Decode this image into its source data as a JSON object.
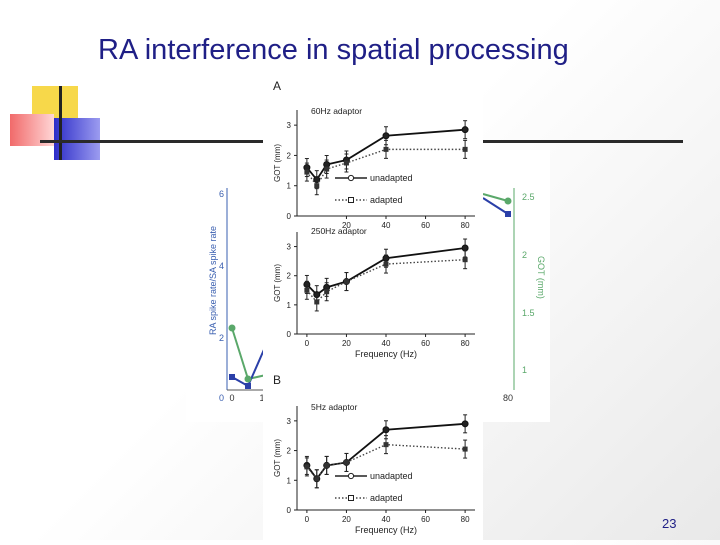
{
  "slide": {
    "title": "RA interference in spatial processing",
    "page_number": "23",
    "colors": {
      "title": "#1f1f86",
      "deco_yellow": "#f7d84a",
      "deco_red": "#f16a6a",
      "deco_blue": "#2d2dc8"
    }
  },
  "back_figure": {
    "left_axis_label": "RA spike rate/SA spike rate",
    "right_axis_label": "GOT (mm)",
    "left_ticks": [
      "6",
      "4",
      "2",
      "0"
    ],
    "right_ticks": [
      "2.5",
      "2",
      "1.5",
      "1"
    ],
    "x_ticks": [
      "0",
      "1",
      "80"
    ],
    "colors": {
      "green": "#5aa86a",
      "blue": "#2a3fa8"
    }
  },
  "chart_data": [
    {
      "type": "line",
      "panel_label": "A",
      "annotation": "60Hz adaptor",
      "xlabel": "",
      "ylabel": "GOT (mm)",
      "x_ticks": [
        "20",
        "40",
        "60",
        "80"
      ],
      "y_ticks": [
        "0",
        "1",
        "2",
        "3"
      ],
      "ylim": [
        0,
        3.5
      ],
      "xlim": [
        -5,
        85
      ],
      "x": [
        0,
        5,
        10,
        20,
        40,
        80
      ],
      "series": [
        {
          "name": "unadapted",
          "style": "solid",
          "values": [
            1.6,
            1.2,
            1.7,
            1.85,
            2.65,
            2.85
          ]
        },
        {
          "name": "adapted",
          "style": "dotted",
          "values": [
            1.45,
            1.0,
            1.55,
            1.75,
            2.2,
            2.2
          ]
        }
      ]
    },
    {
      "type": "line",
      "panel_label": "",
      "annotation": "250Hz adaptor",
      "xlabel": "Frequency (Hz)",
      "ylabel": "GOT (mm)",
      "x_ticks": [
        "0",
        "20",
        "40",
        "60",
        "80"
      ],
      "y_ticks": [
        "0",
        "1",
        "2",
        "3"
      ],
      "ylim": [
        0,
        3.5
      ],
      "xlim": [
        -5,
        85
      ],
      "x": [
        0,
        5,
        10,
        20,
        40,
        80
      ],
      "series": [
        {
          "name": "",
          "style": "solid",
          "values": [
            1.7,
            1.35,
            1.6,
            1.8,
            2.6,
            2.95
          ]
        },
        {
          "name": "",
          "style": "dotted",
          "values": [
            1.5,
            1.1,
            1.45,
            1.8,
            2.4,
            2.55
          ]
        }
      ]
    },
    {
      "type": "line",
      "panel_label": "B",
      "annotation": "5Hz adaptor",
      "xlabel": "Frequency (Hz)",
      "ylabel": "GOT (mm)",
      "x_ticks": [
        "0",
        "20",
        "40",
        "60",
        "80"
      ],
      "y_ticks": [
        "0",
        "1",
        "2",
        "3"
      ],
      "ylim": [
        0,
        3.5
      ],
      "xlim": [
        -5,
        85
      ],
      "x": [
        0,
        5,
        10,
        20,
        40,
        80
      ],
      "series": [
        {
          "name": "unadapted",
          "style": "solid",
          "values": [
            1.5,
            1.05,
            1.5,
            1.6,
            2.7,
            2.9
          ]
        },
        {
          "name": "adapted",
          "style": "dotted",
          "values": [
            1.45,
            1.05,
            1.5,
            1.6,
            2.2,
            2.05
          ]
        }
      ]
    }
  ]
}
